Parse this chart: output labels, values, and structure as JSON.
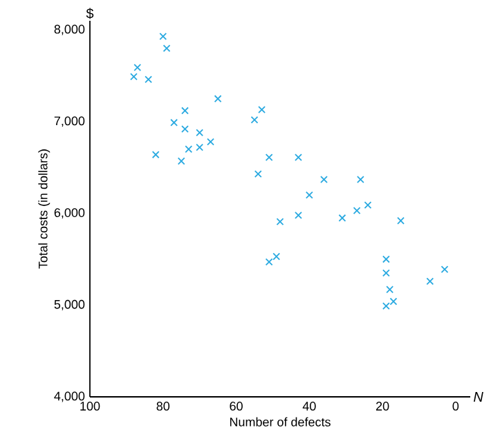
{
  "chart_data": {
    "type": "scatter",
    "xlabel": "Number of defects",
    "ylabel": "Total costs (in dollars)",
    "annotations": [
      "$",
      "N"
    ],
    "xlim": [
      100,
      -4
    ],
    "xticks": [
      100,
      80,
      60,
      40,
      20,
      0
    ],
    "ylim": [
      4000,
      8100
    ],
    "yticks": [
      {
        "value": 4000,
        "label": "4,000"
      },
      {
        "value": 5000,
        "label": "5,000"
      },
      {
        "value": 6000,
        "label": "6,000"
      },
      {
        "value": 7000,
        "label": "7,000"
      },
      {
        "value": 8000,
        "label": "8,000"
      }
    ],
    "marker": "cross",
    "grid": false,
    "series": [
      {
        "color": "#29a9e0",
        "x": [
          80,
          79,
          87,
          88,
          84,
          65,
          74,
          53,
          55,
          77,
          74,
          70,
          67,
          70,
          73,
          82,
          75,
          51,
          54,
          43,
          36,
          26,
          40,
          43,
          48,
          31,
          27,
          24,
          15,
          51,
          49,
          19,
          19,
          18,
          19,
          17,
          7,
          3
        ],
        "values": [
          7930,
          7800,
          7590,
          7490,
          7460,
          7250,
          7120,
          7130,
          7020,
          6990,
          6920,
          6880,
          6780,
          6720,
          6700,
          6640,
          6570,
          6610,
          6430,
          6610,
          6370,
          6370,
          6200,
          5980,
          5910,
          5950,
          6030,
          6090,
          5920,
          5470,
          5530,
          5500,
          5350,
          5170,
          4990,
          5040,
          5260,
          5390
        ]
      }
    ]
  }
}
